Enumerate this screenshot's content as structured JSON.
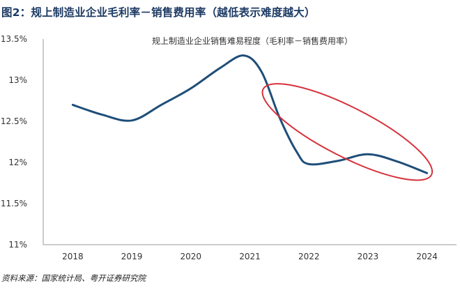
{
  "figure": {
    "title": "图2：规上制造业企业毛利率－销售费用率（越低表示难度越大）",
    "source": "资料来源：国家统计局、粤开证券研究院"
  },
  "chart_data": {
    "type": "line",
    "title": "规上制造业企业销售难易程度（毛利率－销售费用率）",
    "xlabel": "",
    "ylabel": "",
    "categories": [
      "2018",
      "2019",
      "2020",
      "2021",
      "2022",
      "2023",
      "2024"
    ],
    "x": [
      2018,
      2018.5,
      2019,
      2019.5,
      2020,
      2020.5,
      2020.9,
      2021.2,
      2021.5,
      2021.8,
      2022,
      2022.5,
      2023,
      2023.5,
      2024
    ],
    "series": [
      {
        "name": "",
        "values": [
          12.7,
          12.58,
          12.51,
          12.7,
          12.9,
          13.15,
          13.3,
          13.1,
          12.55,
          12.12,
          11.98,
          12.02,
          12.1,
          12.01,
          11.87
        ]
      }
    ],
    "ylim": [
      11,
      13.5
    ],
    "yticks": [
      11,
      11.5,
      12,
      12.5,
      13,
      13.5
    ],
    "ytick_labels": [
      "11%",
      "11.5%",
      "12%",
      "12.5%",
      "13%",
      "13.5%"
    ],
    "grid": false,
    "line_color": "#1f4e79",
    "annotation": {
      "shape": "ellipse",
      "color": "#d6313a",
      "center": [
        2022.65,
        12.37
      ],
      "x_radius": 1.6,
      "y_radius": 0.3,
      "rotation_deg": 27
    }
  }
}
